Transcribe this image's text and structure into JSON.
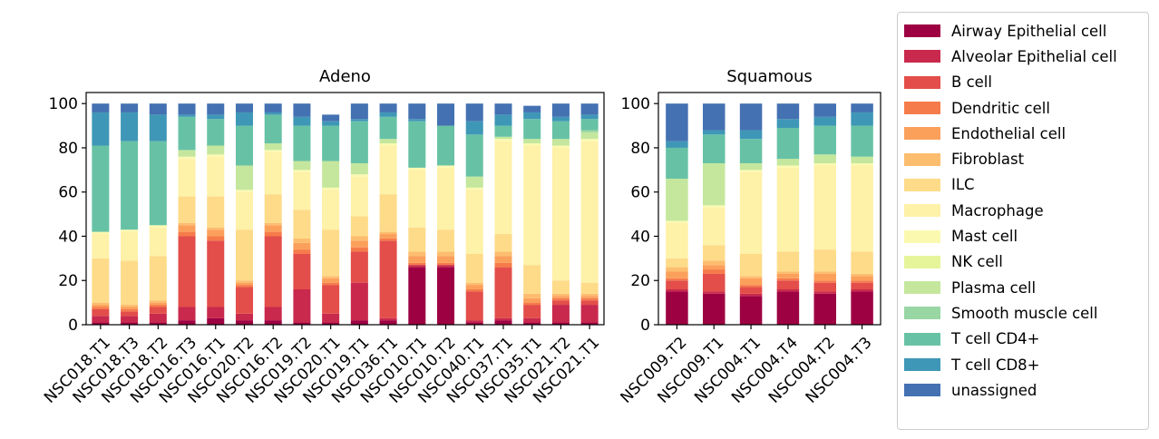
{
  "chart_data": [
    {
      "type": "bar",
      "stacked": true,
      "title": "Adeno",
      "xlabel": "",
      "ylabel": "",
      "ylim": [
        0,
        105
      ],
      "yticks": [
        0,
        20,
        40,
        60,
        80,
        100
      ],
      "grid": false,
      "categories": [
        "NSC018.T1",
        "NSC018.T3",
        "NSC018.T2",
        "NSC016.T3",
        "NSC016.T1",
        "NSC020.T2",
        "NSC016.T2",
        "NSC019.T2",
        "NSC020.T1",
        "NSC019.T1",
        "NSC036.T1",
        "NSC010.T1",
        "NSC010.T2",
        "NSC040.T1",
        "NSC037.T1",
        "NSC035.T1",
        "NSC021.T2",
        "NSC021.T1"
      ],
      "series": [
        {
          "name": "Airway Epithelial cell",
          "values": [
            1,
            1,
            1,
            2,
            3,
            2,
            2,
            1,
            1,
            2,
            2,
            26,
            26,
            1,
            2,
            1,
            1,
            1
          ]
        },
        {
          "name": "Alveolar Epithelial cell",
          "values": [
            3,
            3,
            4,
            6,
            5,
            3,
            6,
            15,
            4,
            17,
            1,
            1,
            1,
            1,
            1,
            2,
            8,
            8
          ]
        },
        {
          "name": "B cell",
          "values": [
            3,
            2,
            3,
            32,
            30,
            12,
            32,
            16,
            13,
            14,
            35,
            0,
            0,
            13,
            23,
            6,
            2,
            2
          ]
        },
        {
          "name": "Dendritic cell",
          "values": [
            1,
            1,
            1,
            2,
            2,
            1,
            2,
            2,
            1,
            2,
            1,
            1,
            1,
            1,
            2,
            1,
            1,
            1
          ]
        },
        {
          "name": "Endothelial cell",
          "values": [
            1,
            1,
            1,
            3,
            3,
            1,
            3,
            3,
            2,
            3,
            2,
            3,
            3,
            2,
            3,
            2,
            1,
            1
          ]
        },
        {
          "name": "Fibroblast",
          "values": [
            1,
            1,
            1,
            1,
            1,
            1,
            1,
            2,
            1,
            2,
            1,
            2,
            2,
            1,
            2,
            2,
            1,
            1
          ]
        },
        {
          "name": "ILC",
          "values": [
            20,
            20,
            20,
            12,
            14,
            23,
            13,
            13,
            21,
            9,
            17,
            11,
            10,
            13,
            8,
            13,
            6,
            5
          ]
        },
        {
          "name": "Macrophage",
          "values": [
            11,
            13,
            13,
            17,
            18,
            17,
            19,
            17,
            18,
            18,
            22,
            26,
            28,
            29,
            42,
            54,
            60,
            64
          ]
        },
        {
          "name": "Mast cell",
          "values": [
            1,
            1,
            1,
            1,
            1,
            1,
            1,
            1,
            1,
            1,
            1,
            1,
            1,
            1,
            1,
            1,
            1,
            1
          ]
        },
        {
          "name": "NK cell",
          "values": [
            0,
            0,
            0,
            0,
            0,
            0,
            0,
            0,
            0,
            0,
            0,
            0,
            0,
            0,
            0,
            0,
            0,
            0
          ]
        },
        {
          "name": "Plasma cell",
          "values": [
            0,
            0,
            0,
            3,
            4,
            11,
            3,
            4,
            12,
            5,
            2,
            0,
            0,
            5,
            1,
            2,
            3,
            3
          ]
        },
        {
          "name": "Smooth muscle cell",
          "values": [
            0,
            0,
            0,
            0,
            0,
            0,
            0,
            0,
            0,
            0,
            0,
            0,
            0,
            0,
            0,
            0,
            0,
            1
          ]
        },
        {
          "name": "T cell CD4+",
          "values": [
            39,
            40,
            38,
            15,
            12,
            18,
            13,
            16,
            16,
            19,
            10,
            21,
            18,
            19,
            5,
            9,
            8,
            5
          ]
        },
        {
          "name": "T cell CD8+",
          "values": [
            15,
            13,
            12,
            1,
            2,
            6,
            1,
            4,
            2,
            1,
            2,
            1,
            0,
            6,
            5,
            3,
            2,
            2
          ]
        },
        {
          "name": "unassigned",
          "values": [
            4,
            4,
            5,
            5,
            5,
            4,
            4,
            6,
            3,
            7,
            4,
            7,
            10,
            8,
            5,
            3,
            6,
            5
          ]
        }
      ]
    },
    {
      "type": "bar",
      "stacked": true,
      "title": "Squamous",
      "xlabel": "",
      "ylabel": "",
      "ylim": [
        0,
        105
      ],
      "yticks": [
        0,
        20,
        40,
        60,
        80,
        100
      ],
      "grid": false,
      "categories": [
        "NSC009.T2",
        "NSC009.T1",
        "NSC004.T1",
        "NSC004.T4",
        "NSC004.T2",
        "NSC004.T3"
      ],
      "series": [
        {
          "name": "Airway Epithelial cell",
          "values": [
            15,
            14,
            13,
            15,
            14,
            15
          ]
        },
        {
          "name": "Alveolar Epithelial cell",
          "values": [
            1,
            1,
            1,
            1,
            1,
            1
          ]
        },
        {
          "name": "B cell",
          "values": [
            4,
            8,
            3,
            4,
            4,
            3
          ]
        },
        {
          "name": "Dendritic cell",
          "values": [
            1,
            2,
            1,
            1,
            1,
            1
          ]
        },
        {
          "name": "Endothelial cell",
          "values": [
            3,
            2,
            3,
            2,
            3,
            2
          ]
        },
        {
          "name": "Fibroblast",
          "values": [
            2,
            2,
            1,
            1,
            1,
            1
          ]
        },
        {
          "name": "ILC",
          "values": [
            4,
            7,
            10,
            9,
            10,
            10
          ]
        },
        {
          "name": "Macrophage",
          "values": [
            16,
            17,
            37,
            38,
            38,
            39
          ]
        },
        {
          "name": "Mast cell",
          "values": [
            1,
            1,
            1,
            1,
            1,
            1
          ]
        },
        {
          "name": "NK cell",
          "values": [
            0,
            0,
            0,
            0,
            0,
            0
          ]
        },
        {
          "name": "Plasma cell",
          "values": [
            19,
            19,
            3,
            3,
            4,
            3
          ]
        },
        {
          "name": "Smooth muscle cell",
          "values": [
            0,
            0,
            0,
            0,
            0,
            0
          ]
        },
        {
          "name": "T cell CD4+",
          "values": [
            14,
            13,
            11,
            14,
            13,
            14
          ]
        },
        {
          "name": "T cell CD8+",
          "values": [
            3,
            2,
            4,
            4,
            4,
            6
          ]
        },
        {
          "name": "unassigned",
          "values": [
            17,
            12,
            12,
            7,
            6,
            4
          ]
        }
      ]
    }
  ],
  "legend": {
    "placement": "right",
    "items": [
      {
        "label": "Airway Epithelial cell",
        "color": "#9e0142"
      },
      {
        "label": "Alveolar Epithelial cell",
        "color": "#c9294d"
      },
      {
        "label": "B cell",
        "color": "#e34e4a"
      },
      {
        "label": "Dendritic cell",
        "color": "#f67b4a"
      },
      {
        "label": "Endothelial cell",
        "color": "#fba05b"
      },
      {
        "label": "Fibroblast",
        "color": "#fdbd6e"
      },
      {
        "label": "ILC",
        "color": "#fedb89"
      },
      {
        "label": "Macrophage",
        "color": "#fef1a8"
      },
      {
        "label": "Mast cell",
        "color": "#fbf9b0"
      },
      {
        "label": "NK cell",
        "color": "#e6f599"
      },
      {
        "label": "Plasma cell",
        "color": "#c4e79d"
      },
      {
        "label": "Smooth muscle cell",
        "color": "#98d6a4"
      },
      {
        "label": "T cell CD4+",
        "color": "#67c2a5"
      },
      {
        "label": "T cell CD8+",
        "color": "#3f97b7"
      },
      {
        "label": "unassigned",
        "color": "#4471b2"
      }
    ]
  }
}
